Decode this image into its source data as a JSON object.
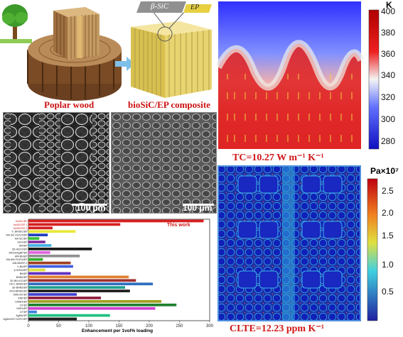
{
  "schematic": {
    "poplar_label": "Poplar wood",
    "composite_label": "bioSiC/EP composite",
    "sic_tag": "β-SiC",
    "ep_tag": "EP"
  },
  "sem": {
    "left_scale": "100 μm",
    "right_scale": "100 μm"
  },
  "thermal": {
    "unit": "K",
    "ticks": [
      "400",
      "380",
      "360",
      "340",
      "320",
      "300",
      "280"
    ],
    "tc_label": "TC=10.27 W m⁻¹ K⁻¹"
  },
  "stress": {
    "unit": "Pa×10⁷",
    "ticks": [
      "2.5",
      "2.0",
      "1.5",
      "1.0",
      "0.5"
    ],
    "clte_label": "CLTE=12.23 ppm K⁻¹"
  },
  "chart_data": {
    "type": "bar",
    "orientation": "horizontal",
    "xlabel": "Enhancement per 1vol% loading",
    "xlim": [
      0,
      300
    ],
    "xticks": [
      "0",
      "50",
      "100",
      "150",
      "200",
      "250",
      "300"
    ],
    "annotation": "This work",
    "categories": [
      "bioSiC/EP",
      "bioSiC/EP-1",
      "bioSiC/EP-2",
      "V_BN/SiC/EP",
      "MA SiC-Fe2O3/EP",
      "MA SiC/EP",
      "SiCw/EP",
      "AlN/EP",
      "3D-Al2O3/EP",
      "Al2O3/AgNP/EP",
      "AlN-BN/EP",
      "MA AlN-Fe3O4/EP",
      "AlN-BN/EP-2",
      "h-BN/EP",
      "β-Si3N4/EP",
      "BN/EP",
      "BNNS/EP",
      "3D BN-rGO/EP",
      "Hb-C BNNS/EP",
      "3D-BNNS/EP",
      "RGO/BNNS/EP",
      "MWCNT/EP",
      "GNP/EP",
      "G/MEA/EP",
      "GT/EP",
      "GNPs/EP",
      "CF/EP",
      "AgNW/EP",
      "AgNW/GP-DOPO/EP"
    ],
    "values": [
      290,
      152,
      40,
      78,
      32,
      18,
      28,
      38,
      105,
      36,
      85,
      24,
      70,
      74,
      28,
      70,
      166,
      178,
      206,
      160,
      168,
      80,
      120,
      220,
      245,
      210,
      14,
      135,
      80
    ],
    "colors": [
      "#d62020",
      "#d62020",
      "#d62020",
      "#e8e838",
      "#2040c0",
      "#38c038",
      "#8030a0",
      "#40b0e0",
      "#1a1a1a",
      "#e060e0",
      "#909090",
      "#30b030",
      "#a04020",
      "#4060e0",
      "#e0e040",
      "#6030c0",
      "#e08030",
      "#a03030",
      "#3070c0",
      "#20a090",
      "#202020",
      "#4040d0",
      "#902040",
      "#a0a020",
      "#208030",
      "#d040d0",
      "#4080e0",
      "#20c080",
      "#202020"
    ]
  }
}
